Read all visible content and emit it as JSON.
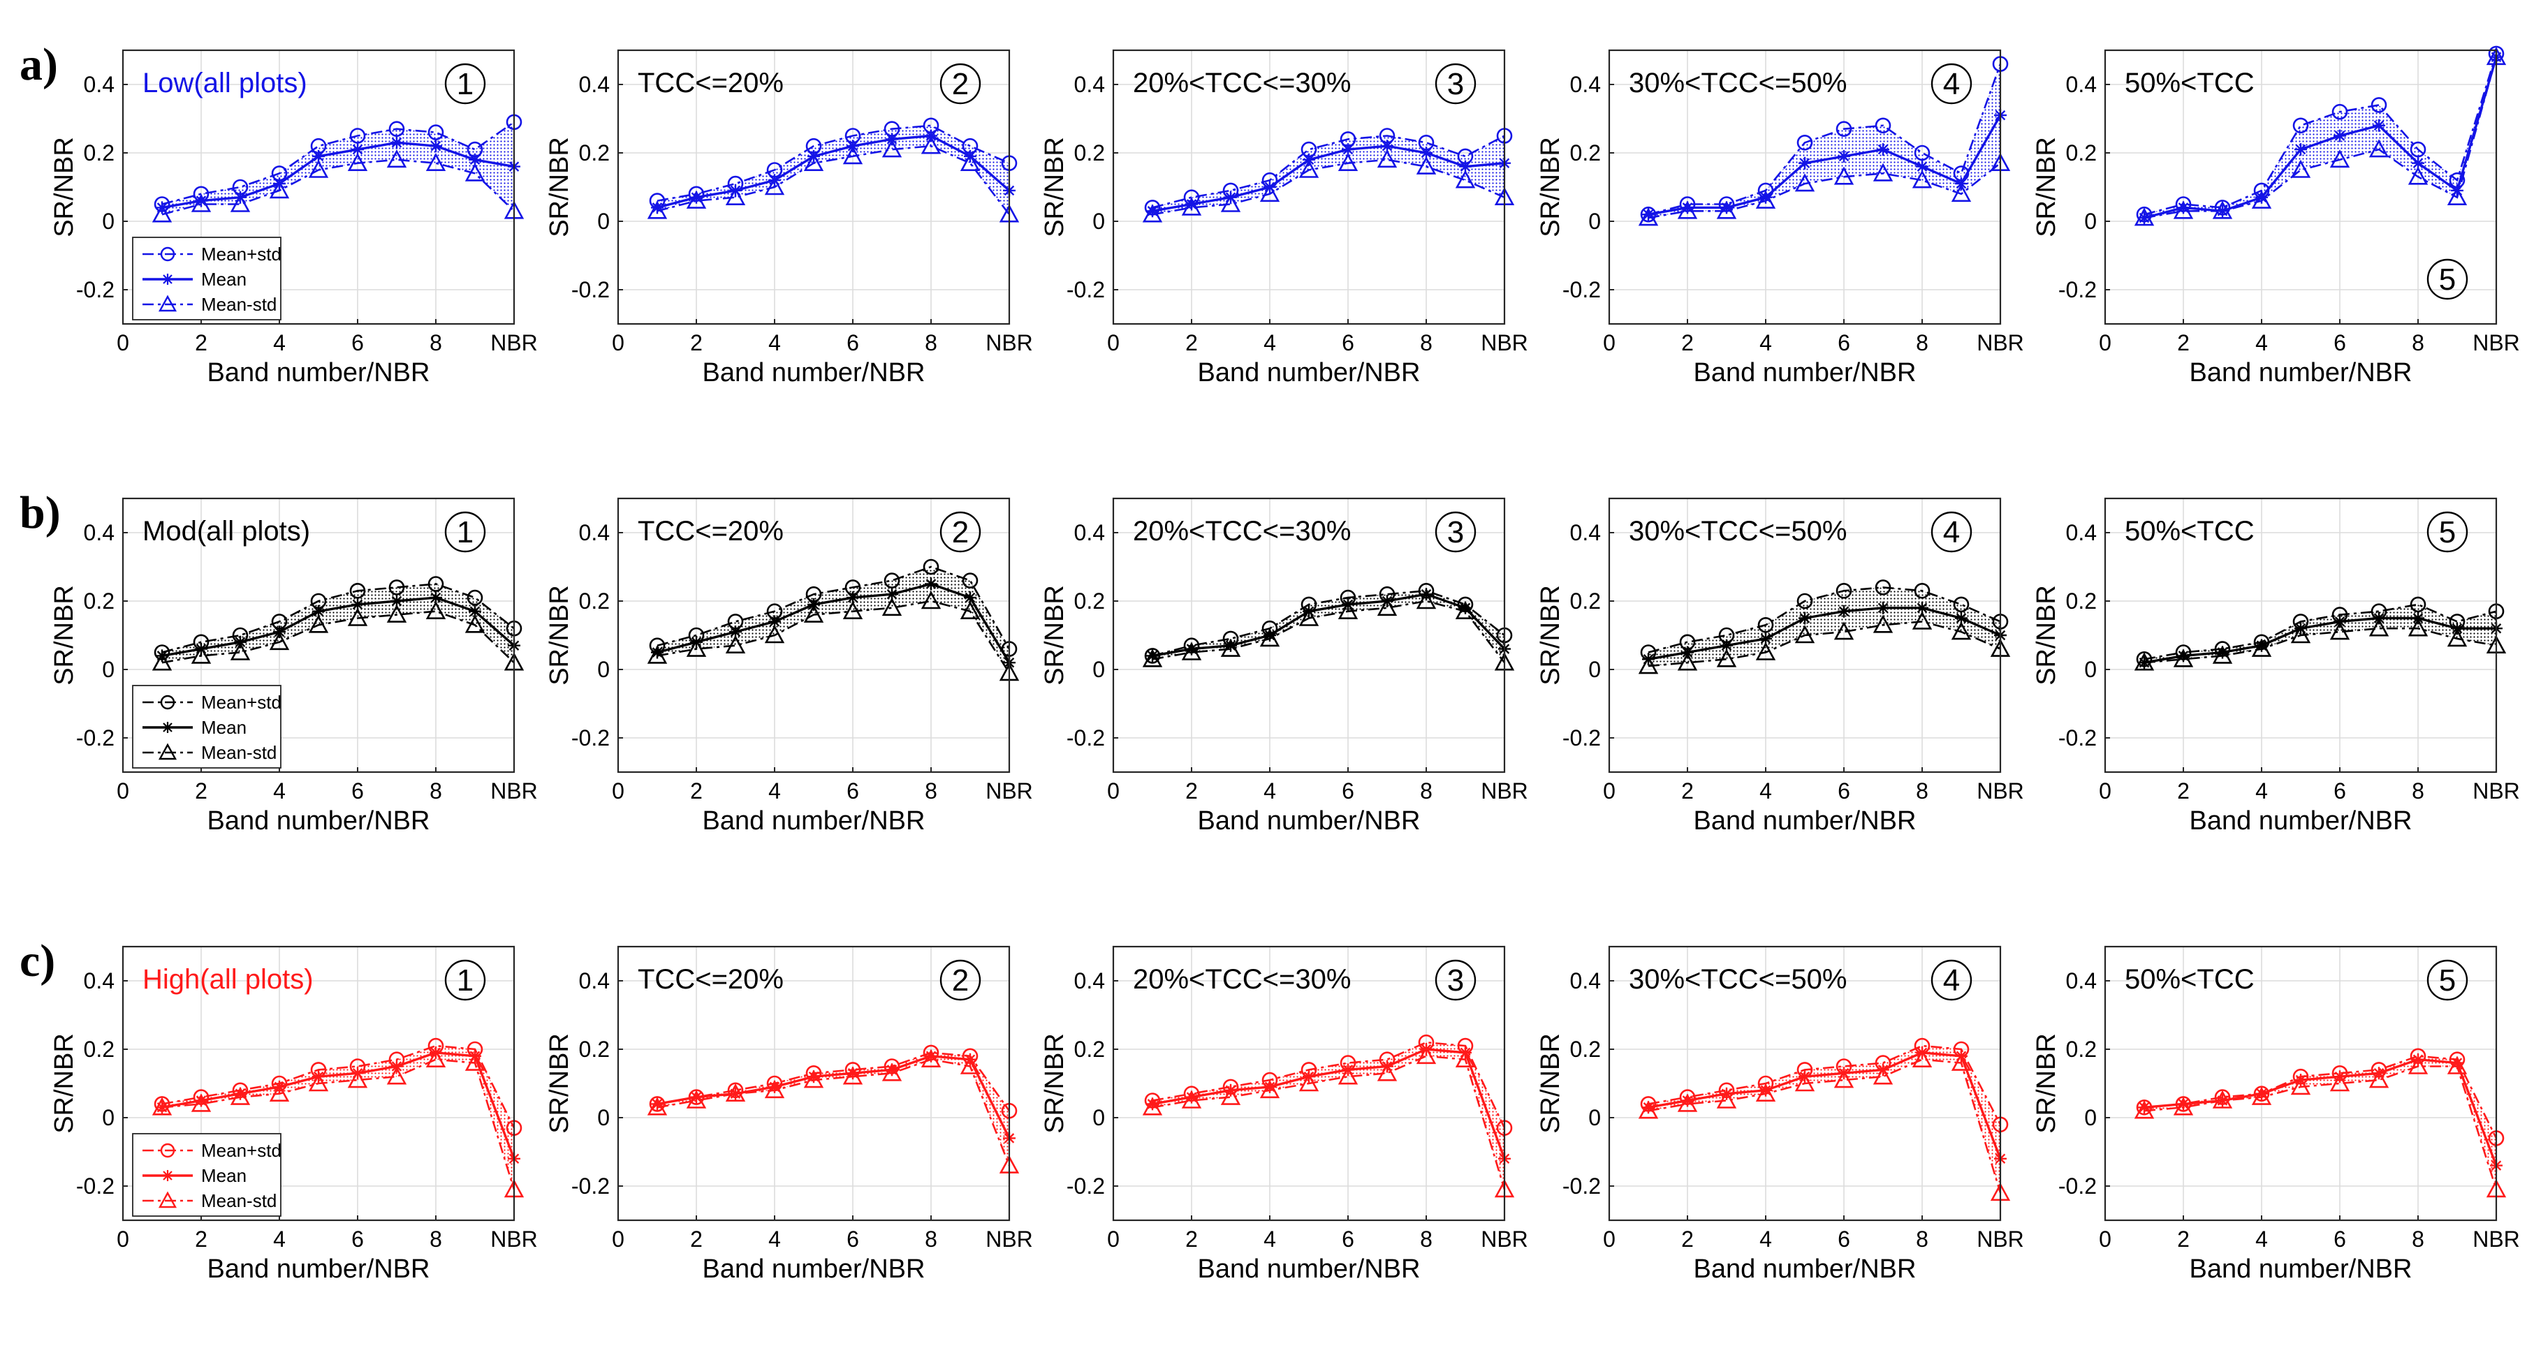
{
  "figure": {
    "x_tick_labels": [
      "0",
      "2",
      "4",
      "6",
      "8",
      "NBR"
    ],
    "y_tick_labels": [
      "-0.2",
      "0",
      "0.2",
      "0.4"
    ]
  },
  "chart_data": [
    {
      "row_label": "a)",
      "color": "#1414e6",
      "type": "line",
      "xlabel": "Band number/NBR",
      "ylabel": "SR/NBR",
      "xlim": [
        0,
        10
      ],
      "ylim": [
        -0.3,
        0.5
      ],
      "x": [
        1,
        2,
        3,
        4,
        5,
        6,
        7,
        8,
        9,
        10
      ],
      "legend": [
        "Mean+std",
        "Mean",
        "Mean-std"
      ],
      "panels": [
        {
          "title": "Low(all plots)",
          "number": "1",
          "series": [
            {
              "name": "Mean+std",
              "values": [
                0.05,
                0.08,
                0.1,
                0.14,
                0.22,
                0.25,
                0.27,
                0.26,
                0.21,
                0.29
              ]
            },
            {
              "name": "Mean",
              "values": [
                0.04,
                0.06,
                0.07,
                0.11,
                0.19,
                0.21,
                0.23,
                0.22,
                0.18,
                0.16
              ]
            },
            {
              "name": "Mean-std",
              "values": [
                0.02,
                0.05,
                0.05,
                0.09,
                0.15,
                0.17,
                0.18,
                0.17,
                0.14,
                0.03
              ]
            }
          ]
        },
        {
          "title": "TCC<=20%",
          "number": "2",
          "series": [
            {
              "name": "Mean+std",
              "values": [
                0.06,
                0.08,
                0.11,
                0.15,
                0.22,
                0.25,
                0.27,
                0.28,
                0.22,
                0.17
              ]
            },
            {
              "name": "Mean",
              "values": [
                0.04,
                0.07,
                0.09,
                0.12,
                0.19,
                0.22,
                0.24,
                0.25,
                0.19,
                0.09
              ]
            },
            {
              "name": "Mean-std",
              "values": [
                0.03,
                0.06,
                0.07,
                0.1,
                0.17,
                0.19,
                0.21,
                0.22,
                0.17,
                0.02
              ]
            }
          ]
        },
        {
          "title": "20%<TCC<=30%",
          "number": "3",
          "series": [
            {
              "name": "Mean+std",
              "values": [
                0.04,
                0.07,
                0.09,
                0.12,
                0.21,
                0.24,
                0.25,
                0.23,
                0.19,
                0.25
              ]
            },
            {
              "name": "Mean",
              "values": [
                0.03,
                0.05,
                0.07,
                0.1,
                0.18,
                0.21,
                0.22,
                0.2,
                0.16,
                0.17
              ]
            },
            {
              "name": "Mean-std",
              "values": [
                0.02,
                0.04,
                0.05,
                0.08,
                0.15,
                0.17,
                0.18,
                0.16,
                0.12,
                0.07
              ]
            }
          ]
        },
        {
          "title": "30%<TCC<=50%",
          "number": "4",
          "series": [
            {
              "name": "Mean+std",
              "values": [
                0.02,
                0.05,
                0.05,
                0.09,
                0.23,
                0.27,
                0.28,
                0.2,
                0.14,
                0.46
              ]
            },
            {
              "name": "Mean",
              "values": [
                0.02,
                0.04,
                0.04,
                0.07,
                0.17,
                0.19,
                0.21,
                0.16,
                0.11,
                0.31
              ]
            },
            {
              "name": "Mean-std",
              "values": [
                0.01,
                0.03,
                0.03,
                0.06,
                0.11,
                0.13,
                0.14,
                0.12,
                0.08,
                0.17
              ]
            }
          ]
        },
        {
          "title": "50%<TCC",
          "number": "5",
          "series": [
            {
              "name": "Mean+std",
              "values": [
                0.02,
                0.05,
                0.04,
                0.09,
                0.28,
                0.32,
                0.34,
                0.21,
                0.12,
                0.49
              ]
            },
            {
              "name": "Mean",
              "values": [
                0.01,
                0.04,
                0.03,
                0.07,
                0.21,
                0.25,
                0.28,
                0.17,
                0.09,
                0.48
              ]
            },
            {
              "name": "Mean-std",
              "values": [
                0.01,
                0.03,
                0.03,
                0.06,
                0.15,
                0.18,
                0.21,
                0.13,
                0.07,
                0.48
              ]
            }
          ]
        }
      ]
    },
    {
      "row_label": "b)",
      "color": "#000000",
      "type": "line",
      "xlabel": "Band number/NBR",
      "ylabel": "SR/NBR",
      "xlim": [
        0,
        10
      ],
      "ylim": [
        -0.3,
        0.5
      ],
      "x": [
        1,
        2,
        3,
        4,
        5,
        6,
        7,
        8,
        9,
        10
      ],
      "legend": [
        "Mean+std",
        "Mean",
        "Mean-std"
      ],
      "panels": [
        {
          "title": "Mod(all plots)",
          "number": "1",
          "series": [
            {
              "name": "Mean+std",
              "values": [
                0.05,
                0.08,
                0.1,
                0.14,
                0.2,
                0.23,
                0.24,
                0.25,
                0.21,
                0.12
              ]
            },
            {
              "name": "Mean",
              "values": [
                0.04,
                0.06,
                0.08,
                0.11,
                0.17,
                0.19,
                0.2,
                0.21,
                0.17,
                0.07
              ]
            },
            {
              "name": "Mean-std",
              "values": [
                0.02,
                0.04,
                0.05,
                0.08,
                0.13,
                0.15,
                0.16,
                0.17,
                0.13,
                0.02
              ]
            }
          ]
        },
        {
          "title": "TCC<=20%",
          "number": "2",
          "series": [
            {
              "name": "Mean+std",
              "values": [
                0.07,
                0.1,
                0.14,
                0.17,
                0.22,
                0.24,
                0.26,
                0.3,
                0.26,
                0.06
              ]
            },
            {
              "name": "Mean",
              "values": [
                0.05,
                0.08,
                0.11,
                0.14,
                0.19,
                0.21,
                0.22,
                0.25,
                0.21,
                0.02
              ]
            },
            {
              "name": "Mean-std",
              "values": [
                0.04,
                0.06,
                0.07,
                0.1,
                0.16,
                0.17,
                0.18,
                0.2,
                0.17,
                -0.01
              ]
            }
          ]
        },
        {
          "title": "20%<TCC<=30%",
          "number": "3",
          "series": [
            {
              "name": "Mean+std",
              "values": [
                0.04,
                0.07,
                0.09,
                0.12,
                0.19,
                0.21,
                0.22,
                0.23,
                0.19,
                0.1
              ]
            },
            {
              "name": "Mean",
              "values": [
                0.04,
                0.06,
                0.07,
                0.1,
                0.17,
                0.19,
                0.2,
                0.22,
                0.18,
                0.06
              ]
            },
            {
              "name": "Mean-std",
              "values": [
                0.03,
                0.05,
                0.06,
                0.09,
                0.15,
                0.17,
                0.18,
                0.2,
                0.17,
                0.02
              ]
            }
          ]
        },
        {
          "title": "30%<TCC<=50%",
          "number": "4",
          "series": [
            {
              "name": "Mean+std",
              "values": [
                0.05,
                0.08,
                0.1,
                0.13,
                0.2,
                0.23,
                0.24,
                0.23,
                0.19,
                0.14
              ]
            },
            {
              "name": "Mean",
              "values": [
                0.03,
                0.05,
                0.07,
                0.09,
                0.15,
                0.17,
                0.18,
                0.18,
                0.15,
                0.1
              ]
            },
            {
              "name": "Mean-std",
              "values": [
                0.01,
                0.02,
                0.03,
                0.05,
                0.1,
                0.11,
                0.13,
                0.14,
                0.11,
                0.06
              ]
            }
          ]
        },
        {
          "title": "50%<TCC",
          "number": "5",
          "series": [
            {
              "name": "Mean+std",
              "values": [
                0.03,
                0.05,
                0.06,
                0.08,
                0.14,
                0.16,
                0.17,
                0.19,
                0.14,
                0.17
              ]
            },
            {
              "name": "Mean",
              "values": [
                0.02,
                0.04,
                0.05,
                0.07,
                0.12,
                0.14,
                0.15,
                0.15,
                0.12,
                0.12
              ]
            },
            {
              "name": "Mean-std",
              "values": [
                0.02,
                0.03,
                0.04,
                0.06,
                0.1,
                0.11,
                0.12,
                0.12,
                0.09,
                0.07
              ]
            }
          ]
        }
      ]
    },
    {
      "row_label": "c)",
      "color": "#ff1a1a",
      "type": "line",
      "xlabel": "Band number/NBR",
      "ylabel": "SR/NBR",
      "xlim": [
        0,
        10
      ],
      "ylim": [
        -0.3,
        0.5
      ],
      "x": [
        1,
        2,
        3,
        4,
        5,
        6,
        7,
        8,
        9,
        10
      ],
      "legend": [
        "Mean+std",
        "Mean",
        "Mean-std"
      ],
      "panels": [
        {
          "title": "High(all plots)",
          "number": "1",
          "series": [
            {
              "name": "Mean+std",
              "values": [
                0.04,
                0.06,
                0.08,
                0.1,
                0.14,
                0.15,
                0.17,
                0.21,
                0.2,
                -0.03
              ]
            },
            {
              "name": "Mean",
              "values": [
                0.03,
                0.05,
                0.07,
                0.09,
                0.12,
                0.13,
                0.15,
                0.19,
                0.18,
                -0.12
              ]
            },
            {
              "name": "Mean-std",
              "values": [
                0.03,
                0.04,
                0.06,
                0.07,
                0.1,
                0.11,
                0.12,
                0.17,
                0.16,
                -0.21
              ]
            }
          ]
        },
        {
          "title": "TCC<=20%",
          "number": "2",
          "series": [
            {
              "name": "Mean+std",
              "values": [
                0.04,
                0.06,
                0.08,
                0.1,
                0.13,
                0.14,
                0.15,
                0.19,
                0.18,
                0.02
              ]
            },
            {
              "name": "Mean",
              "values": [
                0.04,
                0.06,
                0.07,
                0.09,
                0.12,
                0.13,
                0.14,
                0.18,
                0.17,
                -0.06
              ]
            },
            {
              "name": "Mean-std",
              "values": [
                0.03,
                0.05,
                0.07,
                0.08,
                0.11,
                0.12,
                0.13,
                0.17,
                0.15,
                -0.14
              ]
            }
          ]
        },
        {
          "title": "20%<TCC<=30%",
          "number": "3",
          "series": [
            {
              "name": "Mean+std",
              "values": [
                0.05,
                0.07,
                0.09,
                0.11,
                0.14,
                0.16,
                0.17,
                0.22,
                0.21,
                -0.03
              ]
            },
            {
              "name": "Mean",
              "values": [
                0.04,
                0.06,
                0.08,
                0.09,
                0.12,
                0.14,
                0.15,
                0.2,
                0.19,
                -0.12
              ]
            },
            {
              "name": "Mean-std",
              "values": [
                0.03,
                0.05,
                0.06,
                0.08,
                0.1,
                0.12,
                0.13,
                0.18,
                0.17,
                -0.21
              ]
            }
          ]
        },
        {
          "title": "30%<TCC<=50%",
          "number": "4",
          "series": [
            {
              "name": "Mean+std",
              "values": [
                0.04,
                0.06,
                0.08,
                0.1,
                0.14,
                0.15,
                0.16,
                0.21,
                0.2,
                -0.02
              ]
            },
            {
              "name": "Mean",
              "values": [
                0.03,
                0.05,
                0.07,
                0.08,
                0.12,
                0.13,
                0.14,
                0.19,
                0.18,
                -0.12
              ]
            },
            {
              "name": "Mean-std",
              "values": [
                0.02,
                0.04,
                0.05,
                0.07,
                0.1,
                0.11,
                0.12,
                0.17,
                0.16,
                -0.22
              ]
            }
          ]
        },
        {
          "title": "50%<TCC",
          "number": "5",
          "series": [
            {
              "name": "Mean+std",
              "values": [
                0.03,
                0.04,
                0.06,
                0.07,
                0.12,
                0.13,
                0.14,
                0.18,
                0.17,
                -0.06
              ]
            },
            {
              "name": "Mean",
              "values": [
                0.03,
                0.04,
                0.05,
                0.07,
                0.11,
                0.12,
                0.13,
                0.17,
                0.16,
                -0.14
              ]
            },
            {
              "name": "Mean-std",
              "values": [
                0.02,
                0.03,
                0.05,
                0.06,
                0.09,
                0.1,
                0.11,
                0.15,
                0.15,
                -0.21
              ]
            }
          ]
        }
      ]
    }
  ]
}
